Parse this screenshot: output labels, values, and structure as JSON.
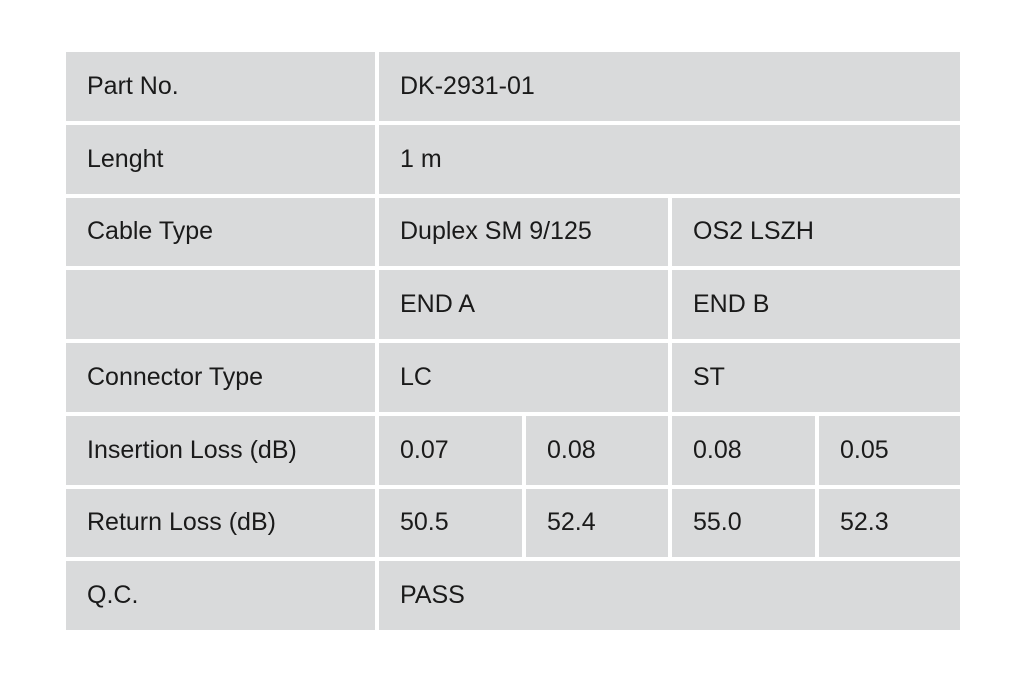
{
  "rows": [
    {
      "label": "Part No.",
      "cells": [
        "DK-2931-01"
      ]
    },
    {
      "label": "Lenght",
      "cells": [
        "1 m"
      ]
    },
    {
      "label": "Cable Type",
      "cells": [
        "Duplex SM 9/125",
        "OS2 LSZH"
      ]
    },
    {
      "label": "",
      "cells": [
        "END A",
        "END B"
      ]
    },
    {
      "label": "Connector Type",
      "cells": [
        "LC",
        "ST"
      ]
    },
    {
      "label": "Insertion Loss (dB)",
      "cells": [
        "0.07",
        "0.08",
        "0.08",
        "0.05"
      ]
    },
    {
      "label": "Return Loss (dB)",
      "cells": [
        "50.5",
        "52.4",
        "55.0",
        "52.3"
      ]
    },
    {
      "label": "Q.C.",
      "cells": [
        "PASS"
      ]
    }
  ]
}
